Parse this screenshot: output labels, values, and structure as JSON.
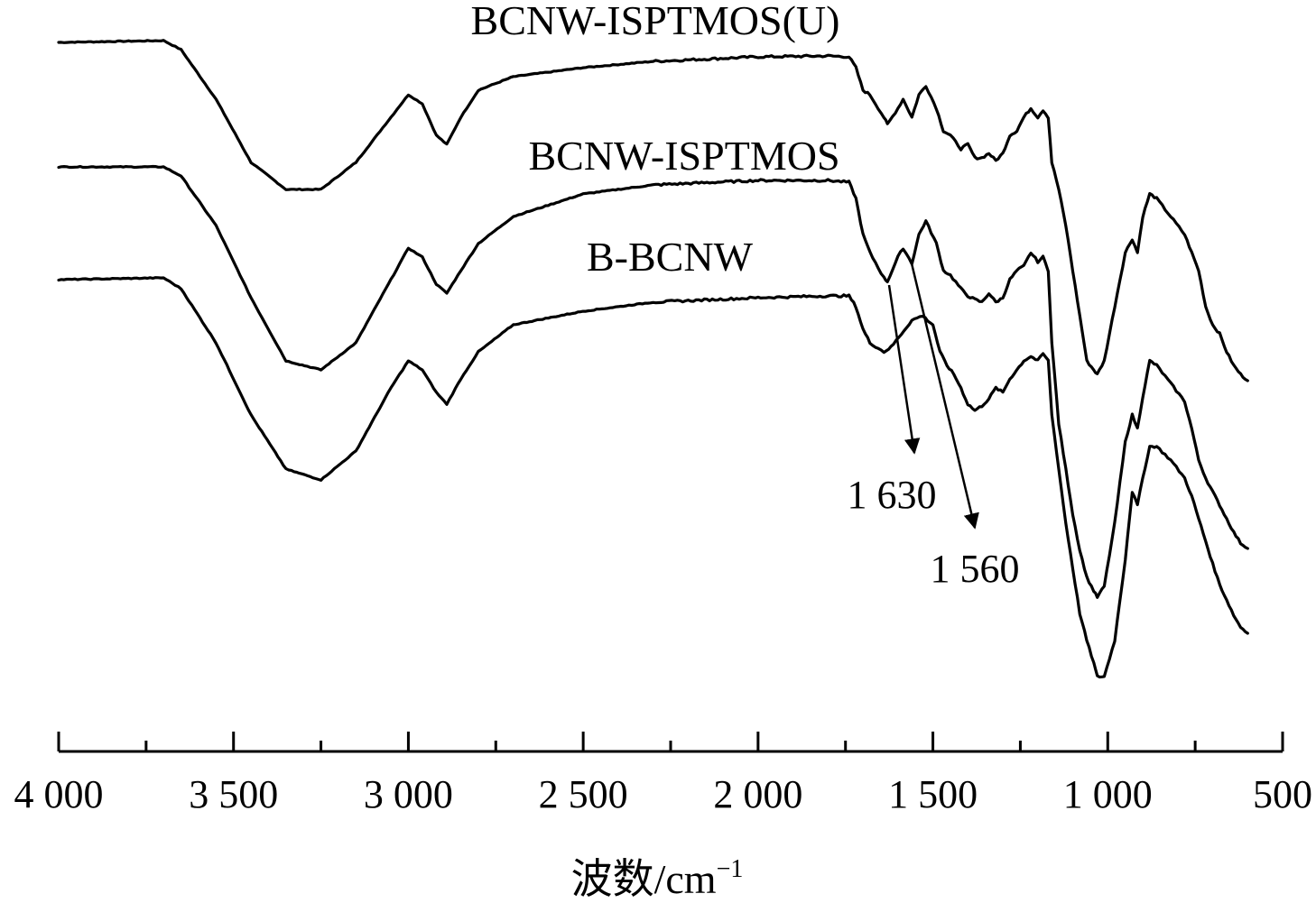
{
  "chart_data": {
    "type": "line",
    "title": "",
    "xlabel": "波数/cm",
    "xlabel_superscript": "−1",
    "ylabel": "",
    "xlim": [
      4000,
      500
    ],
    "x_reversed": true,
    "x_ticks": [
      4000,
      3500,
      3000,
      2500,
      2000,
      1500,
      1000,
      500
    ],
    "x_tick_labels": [
      "4 000",
      "3 500",
      "3 000",
      "2 500",
      "2 000",
      "1 500",
      "1 000",
      "500"
    ],
    "x_minor_ticks": [
      3750,
      3250,
      2750,
      2250,
      1750,
      1250,
      750
    ],
    "y_units": "relative transmittance (offset)",
    "grid": false,
    "series": [
      {
        "name": "BCNW-ISPTMOS(U)",
        "points": [
          [
            4000,
            953
          ],
          [
            3700,
            955
          ],
          [
            3650,
            945
          ],
          [
            3550,
            890
          ],
          [
            3450,
            820
          ],
          [
            3350,
            790
          ],
          [
            3250,
            790
          ],
          [
            3150,
            820
          ],
          [
            3050,
            870
          ],
          [
            3000,
            895
          ],
          [
            2960,
            885
          ],
          [
            2920,
            850
          ],
          [
            2890,
            840
          ],
          [
            2850,
            870
          ],
          [
            2800,
            900
          ],
          [
            2700,
            915
          ],
          [
            2500,
            925
          ],
          [
            2300,
            932
          ],
          [
            2000,
            937
          ],
          [
            1800,
            938
          ],
          [
            1740,
            937
          ],
          [
            1720,
            925
          ],
          [
            1700,
            900
          ],
          [
            1680,
            895
          ],
          [
            1640,
            870
          ],
          [
            1630,
            862
          ],
          [
            1600,
            880
          ],
          [
            1585,
            890
          ],
          [
            1560,
            870
          ],
          [
            1540,
            895
          ],
          [
            1520,
            905
          ],
          [
            1490,
            880
          ],
          [
            1470,
            855
          ],
          [
            1450,
            850
          ],
          [
            1420,
            835
          ],
          [
            1400,
            840
          ],
          [
            1380,
            825
          ],
          [
            1360,
            825
          ],
          [
            1340,
            830
          ],
          [
            1320,
            822
          ],
          [
            1300,
            830
          ],
          [
            1280,
            850
          ],
          [
            1260,
            855
          ],
          [
            1240,
            870
          ],
          [
            1220,
            880
          ],
          [
            1200,
            870
          ],
          [
            1185,
            878
          ],
          [
            1170,
            870
          ],
          [
            1160,
            820
          ],
          [
            1140,
            790
          ],
          [
            1120,
            750
          ],
          [
            1100,
            700
          ],
          [
            1080,
            650
          ],
          [
            1060,
            600
          ],
          [
            1040,
            590
          ],
          [
            1030,
            585
          ],
          [
            1010,
            600
          ],
          [
            980,
            660
          ],
          [
            950,
            720
          ],
          [
            930,
            735
          ],
          [
            915,
            720
          ],
          [
            900,
            760
          ],
          [
            880,
            785
          ],
          [
            860,
            780
          ],
          [
            820,
            760
          ],
          [
            780,
            740
          ],
          [
            760,
            720
          ],
          [
            740,
            700
          ],
          [
            720,
            660
          ],
          [
            700,
            640
          ],
          [
            680,
            630
          ],
          [
            660,
            610
          ],
          [
            640,
            595
          ],
          [
            620,
            585
          ],
          [
            600,
            578
          ]
        ]
      },
      {
        "name": "BCNW-ISPTMOS",
        "points": [
          [
            4000,
            815
          ],
          [
            3700,
            815
          ],
          [
            3650,
            805
          ],
          [
            3550,
            750
          ],
          [
            3450,
            670
          ],
          [
            3350,
            600
          ],
          [
            3250,
            590
          ],
          [
            3150,
            620
          ],
          [
            3050,
            690
          ],
          [
            3000,
            725
          ],
          [
            2960,
            715
          ],
          [
            2920,
            685
          ],
          [
            2890,
            675
          ],
          [
            2850,
            700
          ],
          [
            2800,
            730
          ],
          [
            2700,
            760
          ],
          [
            2500,
            785
          ],
          [
            2300,
            795
          ],
          [
            2000,
            800
          ],
          [
            1800,
            800
          ],
          [
            1740,
            798
          ],
          [
            1720,
            780
          ],
          [
            1700,
            740
          ],
          [
            1680,
            720
          ],
          [
            1640,
            692
          ],
          [
            1630,
            688
          ],
          [
            1600,
            715
          ],
          [
            1585,
            725
          ],
          [
            1560,
            708
          ],
          [
            1540,
            740
          ],
          [
            1520,
            755
          ],
          [
            1490,
            730
          ],
          [
            1470,
            700
          ],
          [
            1450,
            695
          ],
          [
            1420,
            680
          ],
          [
            1400,
            672
          ],
          [
            1380,
            668
          ],
          [
            1360,
            665
          ],
          [
            1340,
            675
          ],
          [
            1320,
            665
          ],
          [
            1300,
            670
          ],
          [
            1280,
            690
          ],
          [
            1260,
            700
          ],
          [
            1240,
            705
          ],
          [
            1220,
            720
          ],
          [
            1200,
            710
          ],
          [
            1185,
            715
          ],
          [
            1170,
            700
          ],
          [
            1160,
            620
          ],
          [
            1140,
            530
          ],
          [
            1120,
            480
          ],
          [
            1100,
            430
          ],
          [
            1080,
            390
          ],
          [
            1060,
            360
          ],
          [
            1040,
            345
          ],
          [
            1030,
            338
          ],
          [
            1010,
            350
          ],
          [
            980,
            420
          ],
          [
            950,
            510
          ],
          [
            930,
            540
          ],
          [
            915,
            525
          ],
          [
            900,
            560
          ],
          [
            880,
            600
          ],
          [
            860,
            595
          ],
          [
            820,
            575
          ],
          [
            780,
            555
          ],
          [
            760,
            525
          ],
          [
            740,
            490
          ],
          [
            720,
            470
          ],
          [
            700,
            455
          ],
          [
            680,
            440
          ],
          [
            660,
            425
          ],
          [
            640,
            410
          ],
          [
            620,
            398
          ],
          [
            600,
            392
          ]
        ]
      },
      {
        "name": "B-BCNW",
        "points": [
          [
            4000,
            690
          ],
          [
            3700,
            692
          ],
          [
            3650,
            680
          ],
          [
            3550,
            620
          ],
          [
            3450,
            540
          ],
          [
            3350,
            480
          ],
          [
            3250,
            468
          ],
          [
            3150,
            500
          ],
          [
            3050,
            570
          ],
          [
            3000,
            600
          ],
          [
            2960,
            590
          ],
          [
            2920,
            565
          ],
          [
            2890,
            552
          ],
          [
            2850,
            580
          ],
          [
            2800,
            610
          ],
          [
            2700,
            640
          ],
          [
            2500,
            655
          ],
          [
            2300,
            665
          ],
          [
            2000,
            670
          ],
          [
            1800,
            672
          ],
          [
            1740,
            672
          ],
          [
            1720,
            660
          ],
          [
            1700,
            635
          ],
          [
            1680,
            620
          ],
          [
            1640,
            610
          ],
          [
            1620,
            615
          ],
          [
            1590,
            630
          ],
          [
            1560,
            645
          ],
          [
            1530,
            650
          ],
          [
            1500,
            640
          ],
          [
            1480,
            610
          ],
          [
            1460,
            595
          ],
          [
            1440,
            585
          ],
          [
            1420,
            570
          ],
          [
            1400,
            552
          ],
          [
            1380,
            545
          ],
          [
            1360,
            550
          ],
          [
            1340,
            558
          ],
          [
            1320,
            570
          ],
          [
            1300,
            565
          ],
          [
            1280,
            580
          ],
          [
            1260,
            590
          ],
          [
            1240,
            600
          ],
          [
            1220,
            605
          ],
          [
            1200,
            600
          ],
          [
            1185,
            608
          ],
          [
            1170,
            600
          ],
          [
            1160,
            540
          ],
          [
            1140,
            480
          ],
          [
            1120,
            420
          ],
          [
            1100,
            370
          ],
          [
            1080,
            320
          ],
          [
            1060,
            290
          ],
          [
            1040,
            265
          ],
          [
            1030,
            250
          ],
          [
            1010,
            250
          ],
          [
            980,
            290
          ],
          [
            950,
            380
          ],
          [
            930,
            455
          ],
          [
            915,
            440
          ],
          [
            900,
            470
          ],
          [
            880,
            505
          ],
          [
            860,
            505
          ],
          [
            820,
            490
          ],
          [
            780,
            470
          ],
          [
            760,
            450
          ],
          [
            740,
            425
          ],
          [
            720,
            400
          ],
          [
            700,
            375
          ],
          [
            680,
            352
          ],
          [
            660,
            335
          ],
          [
            640,
            318
          ],
          [
            620,
            305
          ],
          [
            600,
            298
          ]
        ]
      }
    ],
    "annotations": [
      {
        "text": "1 630",
        "x": 1630
      },
      {
        "text": "1 560",
        "x": 1560
      }
    ]
  }
}
